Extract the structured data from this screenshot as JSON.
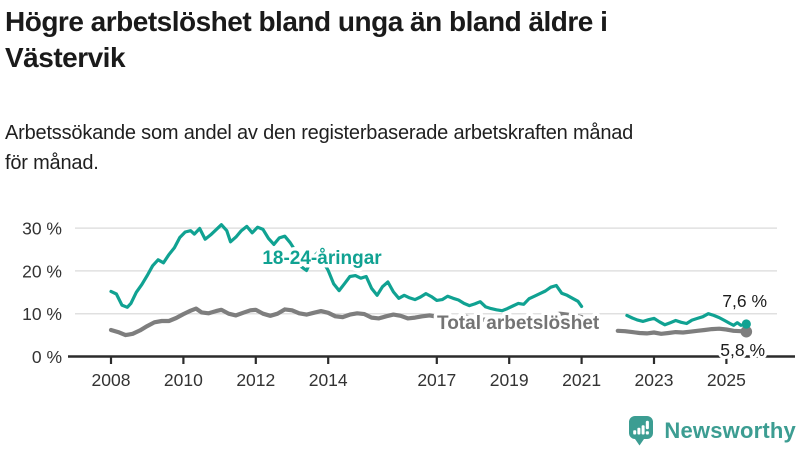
{
  "header": {
    "title_lines": [
      "Högre arbetslöshet bland unga än bland äldre i",
      "Västervik"
    ],
    "subtitle_lines": [
      "Arbetssökande som andel av den registerbaserade arbetskraften månad",
      "för månad."
    ]
  },
  "chart_data": {
    "type": "line",
    "title": "Högre arbetslöshet bland unga än bland äldre i Västervik",
    "subtitle": "Arbetssökande som andel av den registerbaserade arbetskraften månad för månad.",
    "unit": "%",
    "grid": "horizontal",
    "ylim": [
      0,
      32
    ],
    "x_range": [
      2008,
      2025.6
    ],
    "yticks": [
      0,
      10,
      20,
      30
    ],
    "ytick_labels": [
      "0 %",
      "10 %",
      "20 %",
      "30 %"
    ],
    "xticks": [
      2008,
      2010,
      2012,
      2014,
      2017,
      2019,
      2021,
      2023,
      2025
    ],
    "xtick_labels": [
      "2008",
      "2010",
      "2012",
      "2014",
      "2017",
      "2019",
      "2021",
      "2023",
      "2025"
    ],
    "note": "data gap between 2021 and 2022",
    "series": [
      {
        "name": "18-24-åringar",
        "color": "#10a292",
        "label_color": "#10a292",
        "line_width": 3.2,
        "end_label": "7,6 %",
        "end_value": 7.6,
        "end_dot_radius": 4.6,
        "segments": [
          [
            [
              2008.0,
              15.2
            ],
            [
              2008.15,
              14.6
            ],
            [
              2008.3,
              12.0
            ],
            [
              2008.45,
              11.5
            ],
            [
              2008.55,
              12.4
            ],
            [
              2008.7,
              15.0
            ],
            [
              2008.85,
              16.8
            ],
            [
              2009.0,
              18.9
            ],
            [
              2009.15,
              21.2
            ],
            [
              2009.3,
              22.6
            ],
            [
              2009.45,
              21.9
            ],
            [
              2009.6,
              23.8
            ],
            [
              2009.75,
              25.4
            ],
            [
              2009.9,
              27.8
            ],
            [
              2010.05,
              29.1
            ],
            [
              2010.2,
              29.4
            ],
            [
              2010.3,
              28.6
            ],
            [
              2010.45,
              29.9
            ],
            [
              2010.6,
              27.4
            ],
            [
              2010.75,
              28.4
            ],
            [
              2010.9,
              29.6
            ],
            [
              2011.05,
              30.8
            ],
            [
              2011.2,
              29.4
            ],
            [
              2011.3,
              26.8
            ],
            [
              2011.45,
              27.9
            ],
            [
              2011.6,
              29.4
            ],
            [
              2011.75,
              30.4
            ],
            [
              2011.9,
              28.9
            ],
            [
              2012.05,
              30.2
            ],
            [
              2012.2,
              29.7
            ],
            [
              2012.35,
              27.6
            ],
            [
              2012.5,
              26.2
            ],
            [
              2012.65,
              27.7
            ],
            [
              2012.8,
              28.1
            ],
            [
              2012.95,
              26.6
            ],
            [
              2013.1,
              24.6
            ],
            [
              2013.25,
              21.0
            ],
            [
              2013.4,
              20.1
            ],
            [
              2013.55,
              22.8
            ],
            [
              2013.7,
              24.2
            ],
            [
              2013.85,
              22.3
            ],
            [
              2014.0,
              20.1
            ],
            [
              2014.15,
              17.0
            ],
            [
              2014.3,
              15.4
            ],
            [
              2014.45,
              17.0
            ],
            [
              2014.6,
              18.7
            ],
            [
              2014.75,
              18.9
            ],
            [
              2014.9,
              18.3
            ],
            [
              2015.05,
              18.7
            ],
            [
              2015.2,
              15.9
            ],
            [
              2015.35,
              14.3
            ],
            [
              2015.5,
              16.3
            ],
            [
              2015.65,
              17.4
            ],
            [
              2015.8,
              15.1
            ],
            [
              2015.95,
              13.6
            ],
            [
              2016.1,
              14.3
            ],
            [
              2016.25,
              13.7
            ],
            [
              2016.4,
              13.3
            ],
            [
              2016.55,
              13.9
            ],
            [
              2016.7,
              14.7
            ],
            [
              2016.85,
              14.0
            ],
            [
              2017.0,
              13.1
            ],
            [
              2017.15,
              13.3
            ],
            [
              2017.3,
              14.1
            ],
            [
              2017.45,
              13.6
            ],
            [
              2017.6,
              13.2
            ],
            [
              2017.75,
              12.4
            ],
            [
              2017.9,
              11.9
            ],
            [
              2018.05,
              12.3
            ],
            [
              2018.2,
              12.8
            ],
            [
              2018.35,
              11.6
            ],
            [
              2018.5,
              11.2
            ],
            [
              2018.65,
              10.9
            ],
            [
              2018.8,
              10.7
            ],
            [
              2018.95,
              11.2
            ],
            [
              2019.1,
              11.8
            ],
            [
              2019.25,
              12.4
            ],
            [
              2019.4,
              12.2
            ],
            [
              2019.55,
              13.5
            ],
            [
              2019.7,
              14.1
            ],
            [
              2019.85,
              14.7
            ],
            [
              2020.0,
              15.3
            ],
            [
              2020.15,
              16.2
            ],
            [
              2020.3,
              16.6
            ],
            [
              2020.45,
              14.8
            ],
            [
              2020.6,
              14.3
            ],
            [
              2020.75,
              13.6
            ],
            [
              2020.9,
              12.9
            ],
            [
              2021.0,
              11.7
            ]
          ],
          [
            [
              2022.25,
              9.6
            ],
            [
              2022.4,
              9.0
            ],
            [
              2022.55,
              8.5
            ],
            [
              2022.7,
              8.2
            ],
            [
              2022.85,
              8.6
            ],
            [
              2023.0,
              8.9
            ],
            [
              2023.15,
              8.1
            ],
            [
              2023.3,
              7.4
            ],
            [
              2023.45,
              7.9
            ],
            [
              2023.6,
              8.4
            ],
            [
              2023.75,
              8.0
            ],
            [
              2023.9,
              7.7
            ],
            [
              2024.05,
              8.5
            ],
            [
              2024.2,
              8.9
            ],
            [
              2024.35,
              9.3
            ],
            [
              2024.5,
              10.0
            ],
            [
              2024.65,
              9.6
            ],
            [
              2024.8,
              9.1
            ],
            [
              2024.95,
              8.4
            ],
            [
              2025.1,
              7.7
            ],
            [
              2025.2,
              7.3
            ],
            [
              2025.3,
              7.9
            ],
            [
              2025.4,
              7.3
            ],
            [
              2025.55,
              7.6
            ]
          ]
        ]
      },
      {
        "name": "Total arbetslöshet",
        "color": "#7e7e7e",
        "label_color": "#747474",
        "line_width": 4.2,
        "end_label": "5,8 %",
        "end_value": 5.8,
        "end_dot_radius": 5.8,
        "segments": [
          [
            [
              2008.0,
              6.2
            ],
            [
              2008.2,
              5.7
            ],
            [
              2008.4,
              5.0
            ],
            [
              2008.6,
              5.3
            ],
            [
              2008.8,
              6.1
            ],
            [
              2009.0,
              7.1
            ],
            [
              2009.2,
              8.0
            ],
            [
              2009.4,
              8.3
            ],
            [
              2009.6,
              8.3
            ],
            [
              2009.8,
              9.0
            ],
            [
              2010.0,
              9.9
            ],
            [
              2010.2,
              10.7
            ],
            [
              2010.35,
              11.2
            ],
            [
              2010.5,
              10.3
            ],
            [
              2010.7,
              10.1
            ],
            [
              2010.9,
              10.6
            ],
            [
              2011.05,
              10.9
            ],
            [
              2011.25,
              10.0
            ],
            [
              2011.45,
              9.6
            ],
            [
              2011.65,
              10.2
            ],
            [
              2011.85,
              10.8
            ],
            [
              2012.0,
              10.9
            ],
            [
              2012.2,
              10.0
            ],
            [
              2012.4,
              9.5
            ],
            [
              2012.6,
              10.0
            ],
            [
              2012.8,
              11.0
            ],
            [
              2013.0,
              10.8
            ],
            [
              2013.2,
              10.1
            ],
            [
              2013.4,
              9.8
            ],
            [
              2013.6,
              10.2
            ],
            [
              2013.8,
              10.6
            ],
            [
              2014.0,
              10.2
            ],
            [
              2014.2,
              9.4
            ],
            [
              2014.4,
              9.2
            ],
            [
              2014.6,
              9.8
            ],
            [
              2014.8,
              10.1
            ],
            [
              2015.0,
              9.9
            ],
            [
              2015.2,
              9.1
            ],
            [
              2015.4,
              8.9
            ],
            [
              2015.6,
              9.4
            ],
            [
              2015.8,
              9.8
            ],
            [
              2016.0,
              9.5
            ],
            [
              2016.2,
              8.9
            ],
            [
              2016.4,
              9.1
            ],
            [
              2016.6,
              9.4
            ],
            [
              2016.8,
              9.6
            ],
            [
              2017.0,
              9.3
            ],
            [
              2017.2,
              8.7
            ],
            [
              2017.4,
              8.9
            ],
            [
              2017.6,
              9.1
            ],
            [
              2017.8,
              9.3
            ],
            [
              2018.0,
              9.0
            ],
            [
              2018.2,
              8.5
            ],
            [
              2018.4,
              8.7
            ],
            [
              2018.6,
              8.9
            ],
            [
              2018.8,
              9.1
            ],
            [
              2019.0,
              8.8
            ],
            [
              2019.2,
              8.4
            ],
            [
              2019.4,
              8.6
            ],
            [
              2019.6,
              8.8
            ],
            [
              2019.8,
              9.0
            ],
            [
              2020.0,
              9.2
            ],
            [
              2020.2,
              9.7
            ],
            [
              2020.4,
              10.0
            ],
            [
              2020.6,
              9.8
            ],
            [
              2020.8,
              9.5
            ],
            [
              2021.0,
              9.2
            ]
          ],
          [
            [
              2022.0,
              6.0
            ],
            [
              2022.2,
              5.9
            ],
            [
              2022.4,
              5.7
            ],
            [
              2022.6,
              5.5
            ],
            [
              2022.8,
              5.4
            ],
            [
              2023.0,
              5.6
            ],
            [
              2023.2,
              5.3
            ],
            [
              2023.4,
              5.5
            ],
            [
              2023.6,
              5.7
            ],
            [
              2023.8,
              5.6
            ],
            [
              2024.0,
              5.8
            ],
            [
              2024.2,
              6.0
            ],
            [
              2024.4,
              6.2
            ],
            [
              2024.6,
              6.4
            ],
            [
              2024.8,
              6.5
            ],
            [
              2025.0,
              6.3
            ],
            [
              2025.2,
              6.0
            ],
            [
              2025.4,
              5.9
            ],
            [
              2025.55,
              5.8
            ]
          ]
        ]
      }
    ]
  },
  "footer": {
    "brand": "Newsworthy",
    "logo_icon": "bar-chart-speech-bubble-icon",
    "brand_color": "#3c9d92"
  },
  "colors": {
    "background": "#ffffff",
    "title_text": "#1a1a1a",
    "gridline": "#e0e0e0",
    "axis": "#2b2b2b",
    "tick_text": "#333333",
    "end_label_text": "#1c1c1c",
    "youth_series": "#10a292",
    "total_series": "#7e7e7e",
    "brand_teal": "#3c9d92"
  }
}
